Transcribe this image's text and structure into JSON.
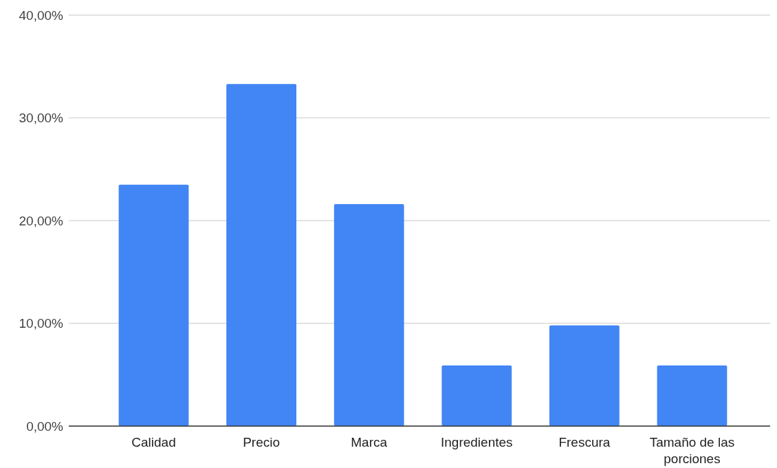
{
  "chart_data": {
    "type": "bar",
    "categories": [
      "Calidad",
      "Precio",
      "Marca",
      "Ingredientes",
      "Frescura",
      "Tamaño de las porciones"
    ],
    "values": [
      23.5,
      33.3,
      21.6,
      5.9,
      9.8,
      5.9
    ],
    "color": "#4285f4",
    "ylim": [
      0,
      40
    ],
    "yticks": [
      {
        "value": 0,
        "label": "0,00%"
      },
      {
        "value": 10,
        "label": "10,00%"
      },
      {
        "value": 20,
        "label": "20,00%"
      },
      {
        "value": 30,
        "label": "30,00%"
      },
      {
        "value": 40,
        "label": "40,00%"
      }
    ],
    "grid": "y"
  }
}
